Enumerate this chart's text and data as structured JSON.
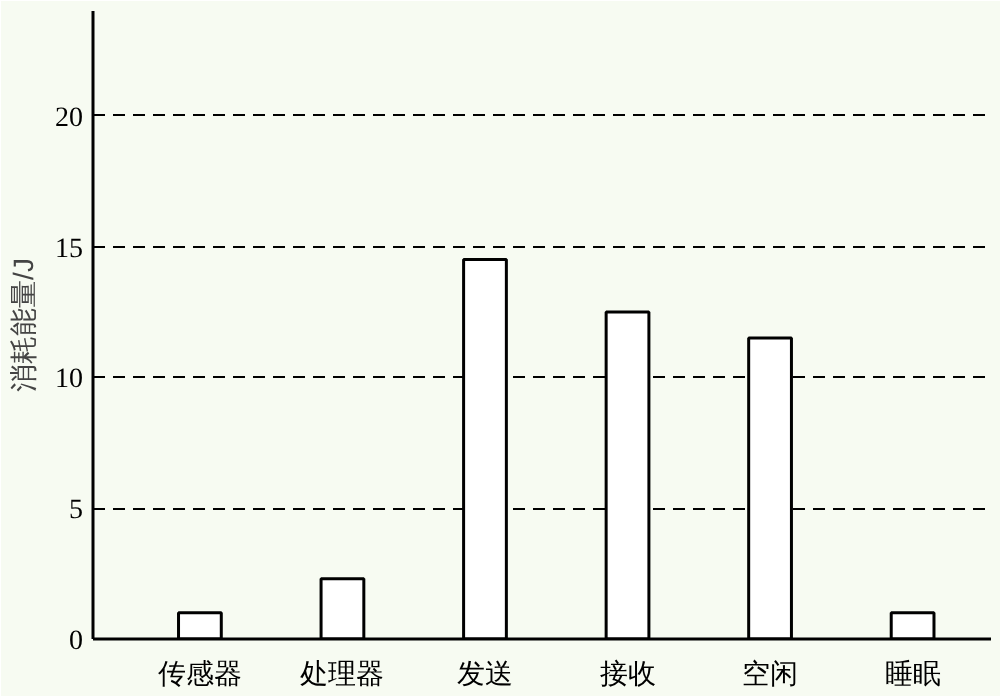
{
  "chart_data": {
    "type": "bar",
    "ylabel": "消耗能量/J",
    "categories": [
      "传感器",
      "处理器",
      "发送",
      "接收",
      "空闲",
      "睡眠"
    ],
    "values": [
      1,
      2.3,
      14.5,
      12.5,
      11.5,
      1
    ],
    "color": "#ffffff",
    "ylim": [
      0,
      24
    ],
    "yticks": [
      0,
      5,
      10,
      15,
      20
    ],
    "grid": "y"
  }
}
